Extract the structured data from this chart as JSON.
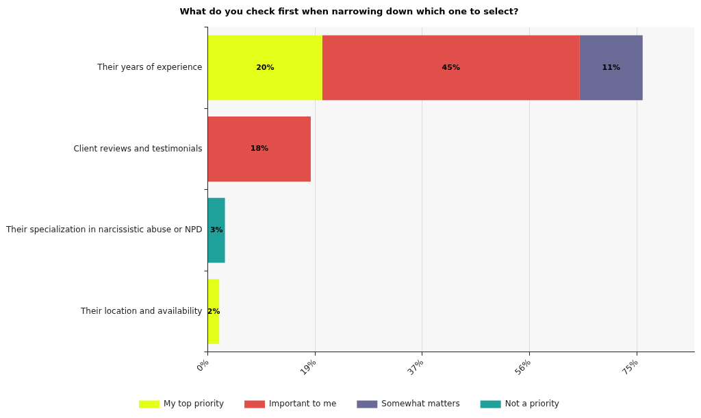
{
  "chart_data": {
    "type": "bar",
    "orientation": "horizontal",
    "stacked": true,
    "title": "What do you check first when narrowing down which one to select?",
    "categories": [
      "Their years of experience",
      "Client reviews and testimonials",
      "Their specialization in narcissistic abuse or NPD",
      "Their location and availability"
    ],
    "series": [
      {
        "name": "My top priority",
        "color": "#e4ff1a",
        "values": [
          20,
          null,
          null,
          2
        ],
        "value_labels": [
          "20%",
          null,
          null,
          "2%"
        ]
      },
      {
        "name": "Important to me",
        "color": "#e04f4a",
        "values": [
          45,
          18,
          null,
          null
        ],
        "value_labels": [
          "45%",
          "18%",
          null,
          null
        ]
      },
      {
        "name": "Somewhat matters",
        "color": "#6a6a96",
        "values": [
          11,
          null,
          null,
          null
        ],
        "value_labels": [
          "11%",
          null,
          null,
          null
        ]
      },
      {
        "name": "Not a priority",
        "color": "#20a09a",
        "values": [
          null,
          null,
          3,
          null
        ],
        "value_labels": [
          null,
          null,
          "3%",
          null
        ]
      }
    ],
    "xlim": [
      0,
      85
    ],
    "xticks": [
      {
        "value": 0,
        "label": "0%"
      },
      {
        "value": 18.75,
        "label": "19%"
      },
      {
        "value": 37.5,
        "label": "37%"
      },
      {
        "value": 56.25,
        "label": "56%"
      },
      {
        "value": 75,
        "label": "75%"
      }
    ],
    "grid": "x",
    "legend": "bottom"
  }
}
